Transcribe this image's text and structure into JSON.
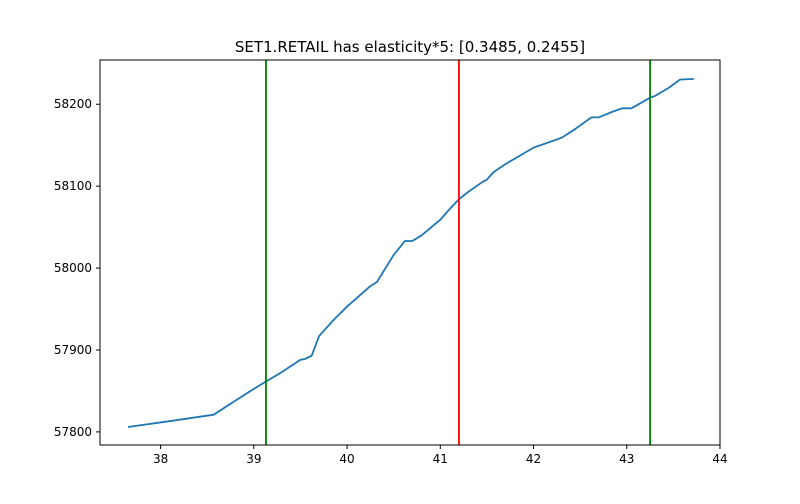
{
  "chart_data": {
    "type": "line",
    "title": "SET1.RETAIL has elasticity*5:   [0.3485, 0.2455]",
    "xlabel": "",
    "ylabel": "",
    "xlim": [
      37.35,
      44.0
    ],
    "ylim": [
      57784,
      58254
    ],
    "grid": false,
    "legend": "none",
    "x_ticks": [
      38,
      39,
      40,
      41,
      42,
      43,
      44
    ],
    "y_ticks": [
      57800,
      57900,
      58000,
      58100,
      58200
    ],
    "x_tick_labels": [
      "38",
      "39",
      "40",
      "41",
      "42",
      "43",
      "44"
    ],
    "y_tick_labels": [
      "57800",
      "57900",
      "58000",
      "58100",
      "58200"
    ],
    "series": [
      {
        "color": "#1f77b4",
        "x": [
          37.65,
          38.15,
          38.57,
          38.8,
          39.05,
          39.3,
          39.5,
          39.55,
          39.62,
          39.7,
          39.85,
          40.0,
          40.05,
          40.15,
          40.25,
          40.32,
          40.5,
          40.62,
          40.7,
          40.8,
          41.0,
          41.1,
          41.2,
          41.3,
          41.45,
          41.5,
          41.57,
          41.7,
          41.85,
          42.0,
          42.15,
          42.3,
          42.45,
          42.62,
          42.7,
          42.85,
          42.95,
          43.05,
          43.25,
          43.3,
          43.45,
          43.57,
          43.72
        ],
        "y": [
          57806,
          57814,
          57821,
          57838,
          57856,
          57873,
          57888,
          57889,
          57893,
          57917,
          57936,
          57953,
          57958,
          57968,
          57978,
          57983,
          58016,
          58033,
          58033,
          58040,
          58059,
          58072,
          58084,
          58093,
          58105,
          58108,
          58117,
          58127,
          58137,
          58147,
          58153,
          58159,
          58170,
          58184,
          58184,
          58191,
          58195,
          58195,
          58208,
          58210,
          58220,
          58230,
          58231
        ]
      }
    ],
    "vertical_lines": [
      {
        "x": 39.13,
        "color": "#008000"
      },
      {
        "x": 41.2,
        "color": "#ff0000"
      },
      {
        "x": 43.25,
        "color": "#008000"
      }
    ]
  }
}
